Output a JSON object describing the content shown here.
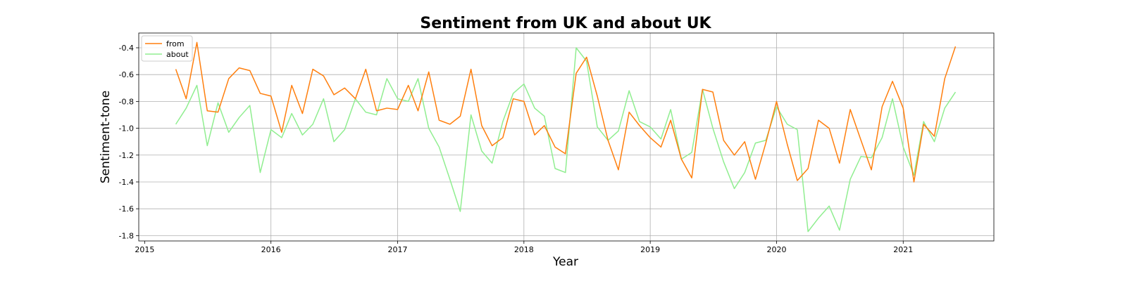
{
  "chart_data": {
    "type": "line",
    "title": "Sentiment from UK and about UK",
    "xlabel": "Year",
    "ylabel": "Sentiment-tone",
    "xlim": [
      "2014-12-15",
      "2021-09-20"
    ],
    "ylim": [
      -1.84,
      -0.29
    ],
    "xticks": [
      "2015",
      "2016",
      "2017",
      "2018",
      "2019",
      "2020",
      "2021"
    ],
    "yticks": [
      "-0.4",
      "-0.6",
      "-0.8",
      "-1.0",
      "-1.2",
      "-1.4",
      "-1.6",
      "-1.8"
    ],
    "grid": true,
    "legend_position": "upper-left",
    "x": [
      "2015-04-01",
      "2015-05-01",
      "2015-06-01",
      "2015-07-01",
      "2015-08-01",
      "2015-09-01",
      "2015-10-01",
      "2015-11-01",
      "2015-12-01",
      "2016-01-01",
      "2016-02-01",
      "2016-03-01",
      "2016-04-01",
      "2016-05-01",
      "2016-06-01",
      "2016-07-01",
      "2016-08-01",
      "2016-09-01",
      "2016-10-01",
      "2016-11-01",
      "2016-12-01",
      "2017-01-01",
      "2017-02-01",
      "2017-03-01",
      "2017-04-01",
      "2017-05-01",
      "2017-06-01",
      "2017-07-01",
      "2017-08-01",
      "2017-09-01",
      "2017-10-01",
      "2017-11-01",
      "2017-12-01",
      "2018-01-01",
      "2018-02-01",
      "2018-03-01",
      "2018-04-01",
      "2018-05-01",
      "2018-06-01",
      "2018-07-01",
      "2018-08-01",
      "2018-09-01",
      "2018-10-01",
      "2018-11-01",
      "2018-12-01",
      "2019-01-01",
      "2019-02-01",
      "2019-03-01",
      "2019-04-01",
      "2019-05-01",
      "2019-06-01",
      "2019-07-01",
      "2019-08-01",
      "2019-09-01",
      "2019-10-01",
      "2019-11-01",
      "2019-12-01",
      "2020-01-01",
      "2020-02-01",
      "2020-03-01",
      "2020-04-01",
      "2020-05-01",
      "2020-06-01",
      "2020-07-01",
      "2020-08-01",
      "2020-09-01",
      "2020-10-01",
      "2020-11-01",
      "2020-12-01",
      "2021-01-01",
      "2021-02-01",
      "2021-03-01",
      "2021-04-01",
      "2021-05-01",
      "2021-06-01"
    ],
    "series": [
      {
        "name": "from",
        "color": "#ff7f0e",
        "values": [
          -0.56,
          -0.78,
          -0.36,
          -0.87,
          -0.88,
          -0.63,
          -0.55,
          -0.57,
          -0.74,
          -0.76,
          -1.03,
          -0.68,
          -0.89,
          -0.56,
          -0.61,
          -0.75,
          -0.7,
          -0.78,
          -0.56,
          -0.87,
          -0.85,
          -0.86,
          -0.68,
          -0.87,
          -0.58,
          -0.94,
          -0.97,
          -0.91,
          -0.56,
          -0.98,
          -1.13,
          -1.07,
          -0.78,
          -0.8,
          -1.05,
          -0.98,
          -1.14,
          -1.19,
          -0.59,
          -0.47,
          -0.76,
          -1.09,
          -1.31,
          -0.88,
          -0.98,
          -1.07,
          -1.14,
          -0.94,
          -1.23,
          -1.37,
          -0.71,
          -0.73,
          -1.09,
          -1.2,
          -1.1,
          -1.38,
          -1.11,
          -0.8,
          -1.12,
          -1.39,
          -1.3,
          -0.94,
          -1.0,
          -1.26,
          -0.86,
          -1.09,
          -1.31,
          -0.84,
          -0.65,
          -0.85,
          -1.4,
          -0.97,
          -1.06,
          -0.63,
          -0.39
        ]
      },
      {
        "name": "about",
        "color": "#90ee90",
        "values": [
          -0.97,
          -0.85,
          -0.68,
          -1.13,
          -0.81,
          -1.03,
          -0.92,
          -0.83,
          -1.33,
          -1.01,
          -1.07,
          -0.89,
          -1.05,
          -0.97,
          -0.78,
          -1.1,
          -1.01,
          -0.78,
          -0.88,
          -0.9,
          -0.63,
          -0.78,
          -0.8,
          -0.63,
          -1.0,
          -1.14,
          -1.38,
          -1.62,
          -0.9,
          -1.17,
          -1.26,
          -0.95,
          -0.74,
          -0.67,
          -0.85,
          -0.91,
          -1.3,
          -1.33,
          -0.4,
          -0.5,
          -0.99,
          -1.09,
          -1.02,
          -0.72,
          -0.95,
          -0.99,
          -1.08,
          -0.86,
          -1.23,
          -1.18,
          -0.71,
          -1.0,
          -1.25,
          -1.45,
          -1.33,
          -1.11,
          -1.09,
          -0.84,
          -0.97,
          -1.01,
          -1.77,
          -1.67,
          -1.58,
          -1.76,
          -1.38,
          -1.21,
          -1.22,
          -1.07,
          -0.78,
          -1.14,
          -1.35,
          -0.95,
          -1.1,
          -0.85,
          -0.73
        ]
      }
    ]
  }
}
